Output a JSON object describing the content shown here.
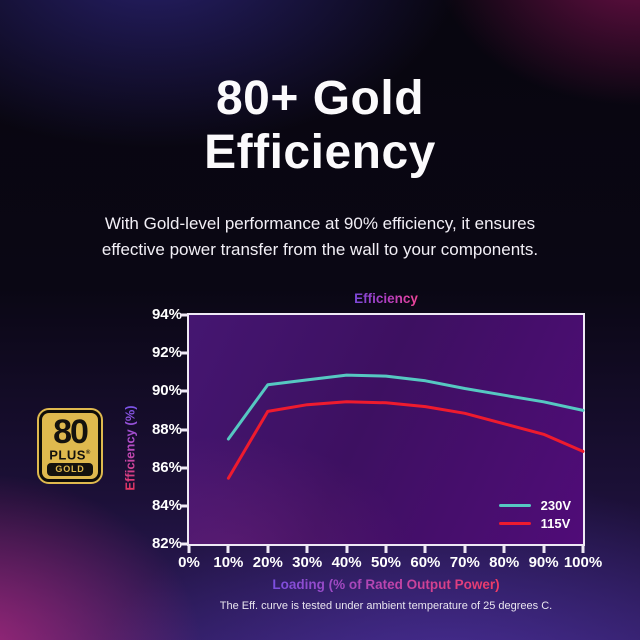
{
  "page": {
    "title_line1": "80+ Gold",
    "title_line2": "Efficiency",
    "subtitle_line1": "With Gold-level performance at 90% efficiency, it ensures",
    "subtitle_line2": "effective power transfer from the wall to your components.",
    "footnote": "The Eff. curve is tested under ambient temperature of 25 degrees C."
  },
  "badge": {
    "number": "80",
    "plus_label": "PLUS",
    "registered_mark": "®",
    "tier_label": "GOLD",
    "gold_color": "#DFB94E"
  },
  "chart_data": {
    "type": "line",
    "title": "Efficiency",
    "xlabel": "Loading (% of Rated Output Power)",
    "ylabel": "Efficiency (%)",
    "xlim": [
      0,
      100
    ],
    "ylim": [
      82,
      94
    ],
    "grid": false,
    "legend_position": "bottom-right",
    "x_ticks": [
      0,
      10,
      20,
      30,
      40,
      50,
      60,
      70,
      80,
      90,
      100
    ],
    "x_tick_labels": [
      "0%",
      "10%",
      "20%",
      "30%",
      "40%",
      "50%",
      "60%",
      "70%",
      "80%",
      "90%",
      "100%"
    ],
    "y_ticks": [
      94,
      92,
      90,
      88,
      86,
      84,
      82
    ],
    "y_tick_labels": [
      "94%",
      "92%",
      "90%",
      "88%",
      "86%",
      "84%",
      "82%"
    ],
    "x": [
      10,
      20,
      30,
      40,
      50,
      60,
      70,
      80,
      90,
      100
    ],
    "series": [
      {
        "name": "230V",
        "color": "#56C8C2",
        "values": [
          87.5,
          90.35,
          90.6,
          90.85,
          90.8,
          90.55,
          90.15,
          89.8,
          89.45,
          89.0
        ]
      },
      {
        "name": "115V",
        "color": "#EE1B2E",
        "values": [
          85.45,
          88.95,
          89.3,
          89.45,
          89.4,
          89.2,
          88.85,
          88.3,
          87.75,
          86.85
        ]
      }
    ]
  }
}
